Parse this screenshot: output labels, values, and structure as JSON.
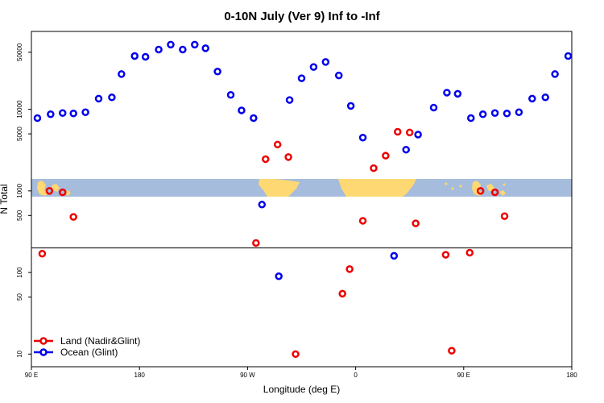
{
  "chart_data": {
    "type": "scatter",
    "title": "0-10N July (Ver 9)   Inf to -Inf",
    "xlabel": "Longitude (deg E)",
    "ylabel": "N Total",
    "xlim": [
      90,
      540
    ],
    "yscale": "log",
    "ylim": [
      7,
      90000
    ],
    "x_ticks": [
      {
        "value": 90,
        "label": "90 E"
      },
      {
        "value": 180,
        "label": "180"
      },
      {
        "value": 270,
        "label": "90 W"
      },
      {
        "value": 360,
        "label": "0"
      },
      {
        "value": 450,
        "label": "90 E"
      },
      {
        "value": 540,
        "label": "180"
      }
    ],
    "y_ticks": [
      {
        "value": 10,
        "label": "10"
      },
      {
        "value": 50,
        "label": "50"
      },
      {
        "value": 100,
        "label": "100"
      },
      {
        "value": 500,
        "label": "500"
      },
      {
        "value": 1000,
        "label": "1000"
      },
      {
        "value": 5000,
        "label": "5000"
      },
      {
        "value": 10000,
        "label": "10000"
      },
      {
        "value": 50000,
        "label": "50000"
      }
    ],
    "reference_line_y": 200,
    "map_band": {
      "ocean_color": "#a6bcdc",
      "land_color": "#fed872"
    },
    "series": [
      {
        "name": "Land (Nadir&Glint)",
        "color": "#ee0000",
        "points": [
          {
            "x": 99,
            "y": 170
          },
          {
            "x": 105,
            "y": 1000
          },
          {
            "x": 116,
            "y": 960
          },
          {
            "x": 125,
            "y": 480
          },
          {
            "x": 277,
            "y": 230
          },
          {
            "x": 285,
            "y": 2450
          },
          {
            "x": 295,
            "y": 3700
          },
          {
            "x": 304,
            "y": 2600
          },
          {
            "x": 310,
            "y": 10
          },
          {
            "x": 349,
            "y": 55
          },
          {
            "x": 355,
            "y": 110
          },
          {
            "x": 366,
            "y": 430
          },
          {
            "x": 375,
            "y": 1900
          },
          {
            "x": 385,
            "y": 2700
          },
          {
            "x": 395,
            "y": 5300
          },
          {
            "x": 405,
            "y": 5200
          },
          {
            "x": 410,
            "y": 400
          },
          {
            "x": 435,
            "y": 165
          },
          {
            "x": 440,
            "y": 11
          },
          {
            "x": 455,
            "y": 175
          },
          {
            "x": 464,
            "y": 1000
          },
          {
            "x": 476,
            "y": 960
          },
          {
            "x": 484,
            "y": 490
          }
        ]
      },
      {
        "name": "Ocean (Glint)",
        "color": "#0000ee",
        "points": [
          {
            "x": 95,
            "y": 7800
          },
          {
            "x": 106,
            "y": 8700
          },
          {
            "x": 116,
            "y": 9000
          },
          {
            "x": 125,
            "y": 8900
          },
          {
            "x": 135,
            "y": 9200
          },
          {
            "x": 146,
            "y": 13500
          },
          {
            "x": 157,
            "y": 14000
          },
          {
            "x": 165,
            "y": 27000
          },
          {
            "x": 176,
            "y": 45000
          },
          {
            "x": 185,
            "y": 44000
          },
          {
            "x": 196,
            "y": 54000
          },
          {
            "x": 206,
            "y": 62000
          },
          {
            "x": 216,
            "y": 54000
          },
          {
            "x": 226,
            "y": 62000
          },
          {
            "x": 235,
            "y": 56000
          },
          {
            "x": 245,
            "y": 29000
          },
          {
            "x": 256,
            "y": 15000
          },
          {
            "x": 265,
            "y": 9700
          },
          {
            "x": 275,
            "y": 7800
          },
          {
            "x": 282,
            "y": 680
          },
          {
            "x": 296,
            "y": 90
          },
          {
            "x": 305,
            "y": 13000
          },
          {
            "x": 315,
            "y": 24000
          },
          {
            "x": 325,
            "y": 33000
          },
          {
            "x": 335,
            "y": 38000
          },
          {
            "x": 346,
            "y": 26000
          },
          {
            "x": 356,
            "y": 11000
          },
          {
            "x": 366,
            "y": 4500
          },
          {
            "x": 392,
            "y": 160
          },
          {
            "x": 402,
            "y": 3200
          },
          {
            "x": 412,
            "y": 4900
          },
          {
            "x": 425,
            "y": 10500
          },
          {
            "x": 436,
            "y": 16000
          },
          {
            "x": 445,
            "y": 15500
          },
          {
            "x": 456,
            "y": 7800
          },
          {
            "x": 466,
            "y": 8700
          },
          {
            "x": 476,
            "y": 9000
          },
          {
            "x": 486,
            "y": 8900
          },
          {
            "x": 496,
            "y": 9200
          },
          {
            "x": 507,
            "y": 13500
          },
          {
            "x": 518,
            "y": 14000
          },
          {
            "x": 526,
            "y": 27000
          },
          {
            "x": 537,
            "y": 45000
          }
        ]
      }
    ],
    "legend": {
      "placement": "bottom-left",
      "items": [
        {
          "label": "Land (Nadir&Glint)",
          "color": "#ee0000"
        },
        {
          "label": "Ocean (Glint)",
          "color": "#0000ee"
        }
      ]
    }
  }
}
